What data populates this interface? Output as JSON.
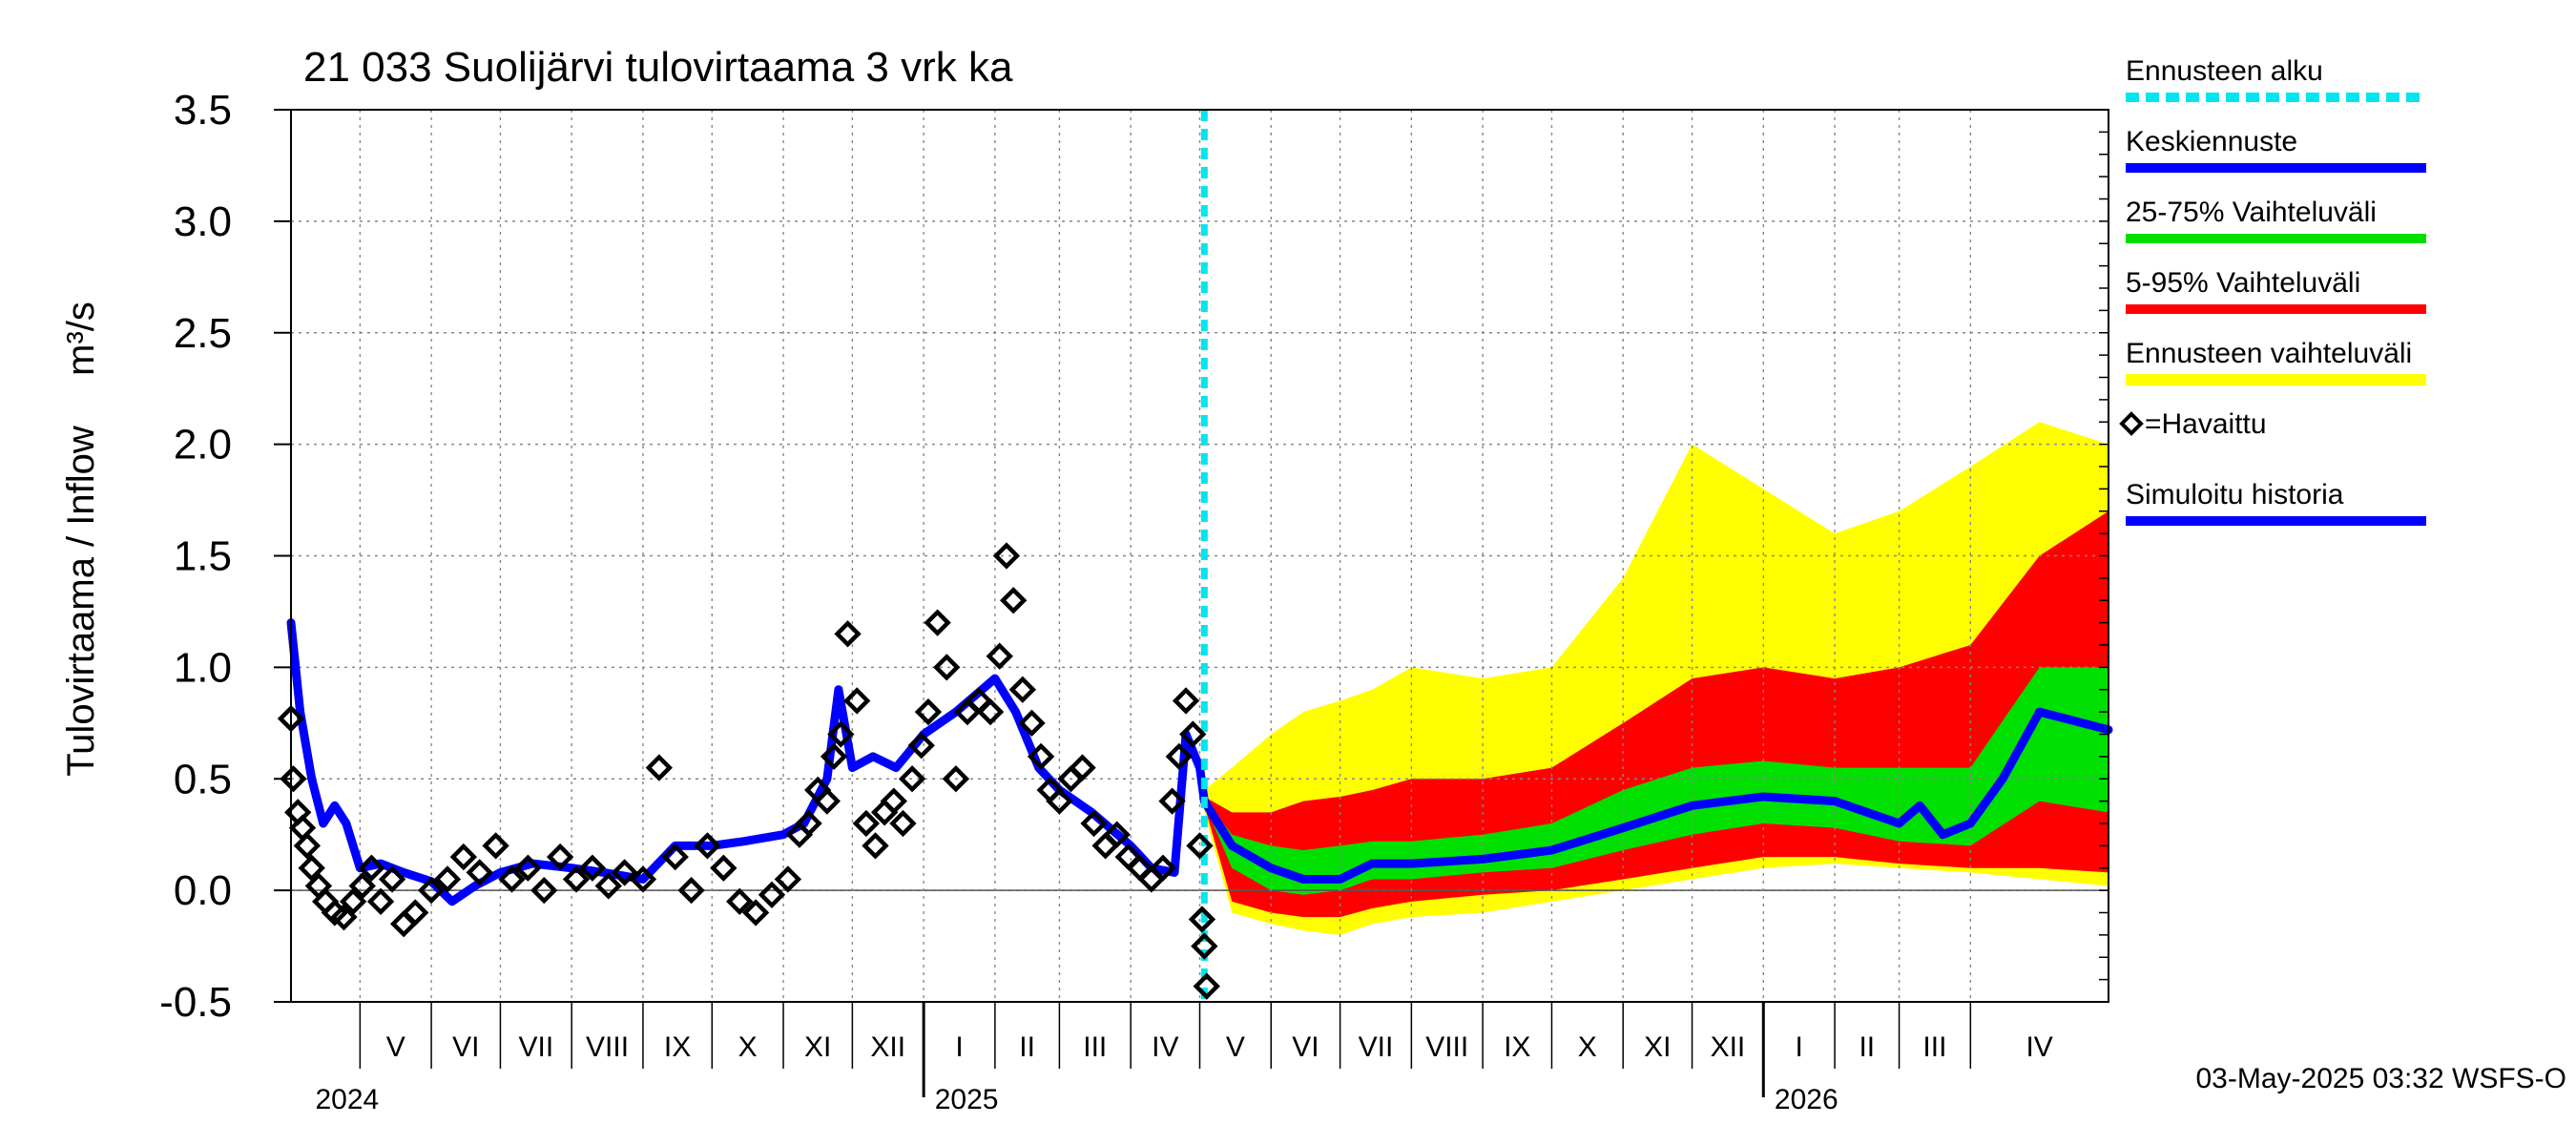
{
  "chart_data": {
    "type": "line",
    "title": "21 033 Suolijärvi tulovirtaama 3 vrk ka",
    "ylabel": "Tulovirtaama / Inflow",
    "yunit": "m³/s",
    "ylim": [
      -0.5,
      3.5
    ],
    "yticks": [
      "3.5",
      "3.0",
      "2.5",
      "2.0",
      "1.5",
      "1.0",
      "0.5",
      "0.0",
      "-0.5"
    ],
    "xlim": [
      "2024-04-01",
      "2026-05-31"
    ],
    "forecast_start": "2025-05-03",
    "grid": true,
    "legend_position": "right",
    "months": [
      {
        "label": "V",
        "date": "2024-05-01"
      },
      {
        "label": "VI",
        "date": "2024-06-01"
      },
      {
        "label": "VII",
        "date": "2024-07-01"
      },
      {
        "label": "VIII",
        "date": "2024-08-01"
      },
      {
        "label": "IX",
        "date": "2024-09-01"
      },
      {
        "label": "X",
        "date": "2024-10-01"
      },
      {
        "label": "XI",
        "date": "2024-11-01"
      },
      {
        "label": "XII",
        "date": "2024-12-01"
      },
      {
        "label": "I",
        "date": "2025-01-01"
      },
      {
        "label": "II",
        "date": "2025-02-01"
      },
      {
        "label": "III",
        "date": "2025-03-01"
      },
      {
        "label": "IV",
        "date": "2025-04-01"
      },
      {
        "label": "V",
        "date": "2025-05-01"
      },
      {
        "label": "VI",
        "date": "2025-06-01"
      },
      {
        "label": "VII",
        "date": "2025-07-01"
      },
      {
        "label": "VIII",
        "date": "2025-08-01"
      },
      {
        "label": "IX",
        "date": "2025-09-01"
      },
      {
        "label": "X",
        "date": "2025-10-01"
      },
      {
        "label": "XI",
        "date": "2025-11-01"
      },
      {
        "label": "XII",
        "date": "2025-12-01"
      },
      {
        "label": "I",
        "date": "2026-01-01"
      },
      {
        "label": "II",
        "date": "2026-02-01"
      },
      {
        "label": "III",
        "date": "2026-03-01"
      },
      {
        "label": "IV",
        "date": "2026-04-01"
      }
    ],
    "years": [
      {
        "label": "2024",
        "date": "2024-04-08"
      },
      {
        "label": "2025",
        "date": "2025-01-01"
      },
      {
        "label": "2026",
        "date": "2026-01-01"
      }
    ],
    "footer": "03-May-2025 03:32 WSFS-O",
    "legend": [
      {
        "key": "forecast_start",
        "label": "Ennusteen alku",
        "color": "#00e5ee"
      },
      {
        "key": "median",
        "label": "Keskiennuste",
        "color": "#0000ff"
      },
      {
        "key": "p25_75",
        "label": "25-75% Vaihteluväli",
        "color": "#00e000"
      },
      {
        "key": "p5_95",
        "label": "5-95% Vaihteluväli",
        "color": "#ff0000"
      },
      {
        "key": "range",
        "label": "Ennusteen vaihteluväli",
        "color": "#ffff00"
      },
      {
        "key": "observed",
        "label": "=Havaittu",
        "color": "#000000"
      },
      {
        "key": "simulated",
        "label": "Simuloitu historia",
        "color": "#0000ff"
      }
    ],
    "series": [
      {
        "name": "Simuloitu historia",
        "x": [
          "2024-04-01",
          "2024-04-05",
          "2024-04-10",
          "2024-04-15",
          "2024-04-20",
          "2024-04-25",
          "2024-05-01",
          "2024-05-10",
          "2024-05-20",
          "2024-06-01",
          "2024-06-10",
          "2024-06-20",
          "2024-07-01",
          "2024-07-15",
          "2024-08-01",
          "2024-08-15",
          "2024-09-01",
          "2024-09-15",
          "2024-10-01",
          "2024-10-15",
          "2024-11-01",
          "2024-11-10",
          "2024-11-20",
          "2024-11-25",
          "2024-12-01",
          "2024-12-10",
          "2024-12-20",
          "2025-01-01",
          "2025-01-15",
          "2025-02-01",
          "2025-02-10",
          "2025-02-20",
          "2025-03-01",
          "2025-03-15",
          "2025-04-01",
          "2025-04-10",
          "2025-04-20",
          "2025-04-25",
          "2025-05-01",
          "2025-05-03"
        ],
        "values": [
          1.2,
          0.8,
          0.5,
          0.3,
          0.38,
          0.3,
          0.1,
          0.12,
          0.08,
          0.04,
          -0.05,
          0.02,
          0.08,
          0.12,
          0.1,
          0.08,
          0.05,
          0.2,
          0.2,
          0.22,
          0.25,
          0.3,
          0.5,
          0.9,
          0.55,
          0.6,
          0.55,
          0.7,
          0.8,
          0.95,
          0.8,
          0.55,
          0.45,
          0.35,
          0.2,
          0.1,
          0.08,
          0.7,
          0.55,
          0.4
        ]
      },
      {
        "name": "Keskiennuste",
        "x": [
          "2025-05-03",
          "2025-05-15",
          "2025-06-01",
          "2025-06-15",
          "2025-07-01",
          "2025-07-15",
          "2025-08-01",
          "2025-09-01",
          "2025-10-01",
          "2025-11-01",
          "2025-12-01",
          "2026-01-01",
          "2026-02-01",
          "2026-03-01",
          "2026-03-10",
          "2026-03-20",
          "2026-04-01",
          "2026-04-15",
          "2026-05-01",
          "2026-05-31"
        ],
        "values": [
          0.4,
          0.2,
          0.1,
          0.05,
          0.05,
          0.12,
          0.12,
          0.14,
          0.18,
          0.28,
          0.38,
          0.42,
          0.4,
          0.3,
          0.38,
          0.25,
          0.3,
          0.5,
          0.8,
          0.72
        ]
      }
    ],
    "bands": {
      "x": [
        "2025-05-03",
        "2025-05-15",
        "2025-06-01",
        "2025-06-15",
        "2025-07-01",
        "2025-07-15",
        "2025-08-01",
        "2025-09-01",
        "2025-10-01",
        "2025-11-01",
        "2025-12-01",
        "2026-01-01",
        "2026-02-01",
        "2026-03-01",
        "2026-04-01",
        "2026-05-01",
        "2026-05-31"
      ],
      "range_low": [
        0.35,
        -0.1,
        -0.15,
        -0.18,
        -0.2,
        -0.15,
        -0.12,
        -0.1,
        -0.05,
        0.0,
        0.05,
        0.1,
        0.12,
        0.1,
        0.08,
        0.05,
        0.02
      ],
      "range_high": [
        0.45,
        0.55,
        0.7,
        0.8,
        0.85,
        0.9,
        1.0,
        0.95,
        1.0,
        1.4,
        2.0,
        1.8,
        1.6,
        1.7,
        1.9,
        2.1,
        2.0
      ],
      "p5": [
        0.38,
        -0.05,
        -0.1,
        -0.12,
        -0.12,
        -0.08,
        -0.05,
        -0.02,
        0.0,
        0.05,
        0.1,
        0.15,
        0.15,
        0.12,
        0.1,
        0.1,
        0.08
      ],
      "p95": [
        0.42,
        0.35,
        0.35,
        0.4,
        0.42,
        0.45,
        0.5,
        0.5,
        0.55,
        0.75,
        0.95,
        1.0,
        0.95,
        1.0,
        1.1,
        1.5,
        1.7
      ],
      "p25": [
        0.39,
        0.1,
        0.0,
        -0.02,
        0.0,
        0.05,
        0.05,
        0.08,
        0.1,
        0.18,
        0.25,
        0.3,
        0.28,
        0.22,
        0.2,
        0.4,
        0.35
      ],
      "p75": [
        0.41,
        0.25,
        0.2,
        0.18,
        0.2,
        0.22,
        0.22,
        0.25,
        0.3,
        0.45,
        0.55,
        0.58,
        0.55,
        0.55,
        0.55,
        1.0,
        1.0
      ]
    },
    "observed": {
      "x": [
        "2024-04-01",
        "2024-04-02",
        "2024-04-04",
        "2024-04-06",
        "2024-04-08",
        "2024-04-10",
        "2024-04-13",
        "2024-04-16",
        "2024-04-20",
        "2024-04-24",
        "2024-04-28",
        "2024-05-02",
        "2024-05-06",
        "2024-05-10",
        "2024-05-15",
        "2024-05-20",
        "2024-05-25",
        "2024-06-01",
        "2024-06-08",
        "2024-06-15",
        "2024-06-22",
        "2024-06-29",
        "2024-07-06",
        "2024-07-13",
        "2024-07-20",
        "2024-07-27",
        "2024-08-03",
        "2024-08-10",
        "2024-08-17",
        "2024-08-24",
        "2024-09-01",
        "2024-09-08",
        "2024-09-15",
        "2024-09-22",
        "2024-09-29",
        "2024-10-06",
        "2024-10-13",
        "2024-10-20",
        "2024-10-27",
        "2024-11-03",
        "2024-11-08",
        "2024-11-12",
        "2024-11-16",
        "2024-11-20",
        "2024-11-23",
        "2024-11-26",
        "2024-11-29",
        "2024-12-03",
        "2024-12-07",
        "2024-12-11",
        "2024-12-15",
        "2024-12-19",
        "2024-12-23",
        "2024-12-27",
        "2024-12-31",
        "2025-01-03",
        "2025-01-07",
        "2025-01-11",
        "2025-01-15",
        "2025-01-20",
        "2025-01-25",
        "2025-01-30",
        "2025-02-03",
        "2025-02-06",
        "2025-02-09",
        "2025-02-13",
        "2025-02-17",
        "2025-02-21",
        "2025-02-25",
        "2025-03-01",
        "2025-03-06",
        "2025-03-11",
        "2025-03-16",
        "2025-03-21",
        "2025-03-26",
        "2025-03-31",
        "2025-04-05",
        "2025-04-10",
        "2025-04-15",
        "2025-04-19",
        "2025-04-22",
        "2025-04-25",
        "2025-04-28",
        "2025-05-01",
        "2025-05-02",
        "2025-05-03",
        "2025-05-04"
      ],
      "values": [
        0.77,
        0.5,
        0.35,
        0.28,
        0.2,
        0.1,
        0.02,
        -0.05,
        -0.1,
        -0.12,
        -0.05,
        0.02,
        0.1,
        -0.05,
        0.05,
        -0.15,
        -0.1,
        0.0,
        0.05,
        0.15,
        0.08,
        0.2,
        0.05,
        0.1,
        0.0,
        0.15,
        0.05,
        0.1,
        0.02,
        0.08,
        0.05,
        0.55,
        0.15,
        0.0,
        0.2,
        0.1,
        -0.05,
        -0.1,
        -0.02,
        0.05,
        0.25,
        0.3,
        0.45,
        0.4,
        0.6,
        0.7,
        1.15,
        0.85,
        0.3,
        0.2,
        0.35,
        0.4,
        0.3,
        0.5,
        0.65,
        0.8,
        1.2,
        1.0,
        0.5,
        0.8,
        0.85,
        0.8,
        1.05,
        1.5,
        1.3,
        0.9,
        0.75,
        0.6,
        0.45,
        0.4,
        0.5,
        0.55,
        0.3,
        0.2,
        0.25,
        0.15,
        0.1,
        0.05,
        0.1,
        0.4,
        0.6,
        0.85,
        0.7,
        0.2,
        -0.13,
        -0.25,
        -0.43
      ]
    }
  }
}
